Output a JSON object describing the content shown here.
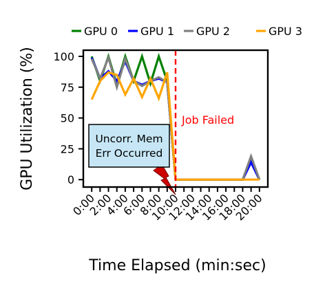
{
  "chart_data": {
    "type": "line",
    "ylabel": "GPU Utilization (%)",
    "xlabel": "Time Elapsed (min:sec)",
    "x_ticks": [
      "0:00",
      "2:00",
      "4:00",
      "6:00",
      "8:00",
      "10:00",
      "12:00",
      "14:00",
      "16:00",
      "18:00",
      "20:00"
    ],
    "y_ticks": [
      0,
      25,
      50,
      75,
      100
    ],
    "xlim": [
      -1,
      21
    ],
    "ylim": [
      -6,
      105
    ],
    "grid": false,
    "legend_position": "top",
    "series": [
      {
        "name": "GPU 0",
        "color": "#008000",
        "x": [
          0,
          1,
          2,
          3,
          4,
          5,
          6,
          7,
          8,
          9,
          10,
          11,
          12,
          13,
          14,
          15,
          16,
          17,
          18,
          19,
          20
        ],
        "y": [
          100,
          80,
          100,
          77,
          100,
          80,
          100,
          78,
          100,
          80,
          0,
          0,
          0,
          0,
          0,
          0,
          0,
          0,
          0,
          15,
          0
        ]
      },
      {
        "name": "GPU 1",
        "color": "#0000ff",
        "x": [
          0,
          1,
          2,
          3,
          4,
          5,
          6,
          7,
          8,
          9,
          10,
          11,
          12,
          13,
          14,
          15,
          16,
          17,
          18,
          19,
          20
        ],
        "y": [
          99,
          82,
          88,
          80,
          96,
          80,
          77,
          80,
          82,
          79,
          0,
          0,
          0,
          0,
          0,
          0,
          0,
          0,
          0,
          14,
          0
        ]
      },
      {
        "name": "GPU 2",
        "color": "#808080",
        "x": [
          0,
          1,
          2,
          3,
          4,
          5,
          6,
          7,
          8,
          9,
          10,
          11,
          12,
          13,
          14,
          15,
          16,
          17,
          18,
          19,
          20
        ],
        "y": [
          98,
          82,
          99,
          75,
          98,
          80,
          76,
          80,
          83,
          79,
          0,
          0,
          0,
          0,
          0,
          0,
          0,
          0,
          0,
          19,
          0
        ]
      },
      {
        "name": "GPU 3",
        "color": "#ffa500",
        "x": [
          0,
          1,
          2,
          3,
          4,
          5,
          6,
          7,
          8,
          9,
          10,
          11,
          12,
          13,
          14,
          15,
          16,
          17,
          18,
          19,
          20
        ],
        "y": [
          65,
          80,
          87,
          85,
          69,
          82,
          67,
          82,
          66,
          87,
          0,
          0,
          0,
          0,
          0,
          0,
          0,
          0,
          0,
          0,
          0
        ]
      }
    ],
    "vline": {
      "x": 10,
      "label": "Job Failed",
      "color": "#ff0000"
    },
    "annotation": {
      "text_lines": [
        "Uncorr. Mem",
        "Err Occurred"
      ],
      "box_color": "#c6e6f5",
      "arrow_color": "#cc0000"
    }
  }
}
